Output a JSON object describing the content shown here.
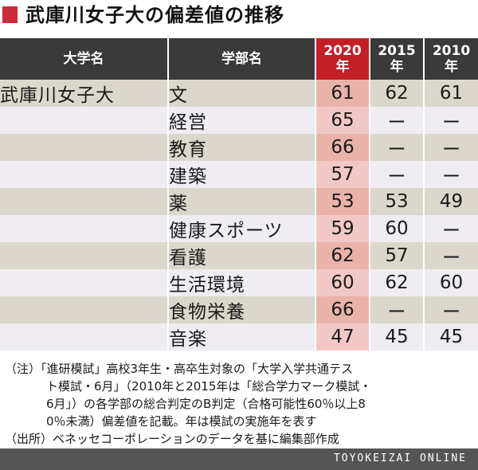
{
  "title": "武庫川女子大の偏差値の推移",
  "table": {
    "headers": {
      "university": "大学名",
      "department": "学部名",
      "y2020": "2020\n年",
      "y2015": "2015\n年",
      "y2010": "2010\n年"
    },
    "highlight_color": "#c31f27",
    "rows": [
      {
        "university": "武庫川女子大",
        "department": "文",
        "y2020": "61",
        "y2015": "62",
        "y2010": "61"
      },
      {
        "university": "",
        "department": "経営",
        "y2020": "65",
        "y2015": "ー",
        "y2010": "ー"
      },
      {
        "university": "",
        "department": "教育",
        "y2020": "66",
        "y2015": "ー",
        "y2010": "ー"
      },
      {
        "university": "",
        "department": "建築",
        "y2020": "57",
        "y2015": "ー",
        "y2010": "ー"
      },
      {
        "university": "",
        "department": "薬",
        "y2020": "53",
        "y2015": "53",
        "y2010": "49"
      },
      {
        "university": "",
        "department": "健康スポーツ",
        "y2020": "59",
        "y2015": "60",
        "y2010": "ー"
      },
      {
        "university": "",
        "department": "看護",
        "y2020": "62",
        "y2015": "57",
        "y2010": "ー"
      },
      {
        "university": "",
        "department": "生活環境",
        "y2020": "60",
        "y2015": "62",
        "y2010": "60"
      },
      {
        "university": "",
        "department": "食物栄養",
        "y2020": "66",
        "y2015": "ー",
        "y2010": "ー"
      },
      {
        "university": "",
        "department": "音楽",
        "y2020": "47",
        "y2015": "45",
        "y2010": "45"
      }
    ]
  },
  "notes": {
    "line1": "（注）「進研模試」高校3年生・高卒生対象の「大学入学共通テス",
    "line2": "ト模試・6月」（2010年と2015年は「総合学力マーク模試・",
    "line3": "6月」）の各学部の総合判定のB判定（合格可能性60％以上8",
    "line4": "0％未満）偏差値を記載。年は模試の実施年を表す",
    "line5": "（出所）ベネッセコーポレーションのデータを基に編集部作成"
  },
  "footer": "TOYOKEIZAI ONLINE"
}
